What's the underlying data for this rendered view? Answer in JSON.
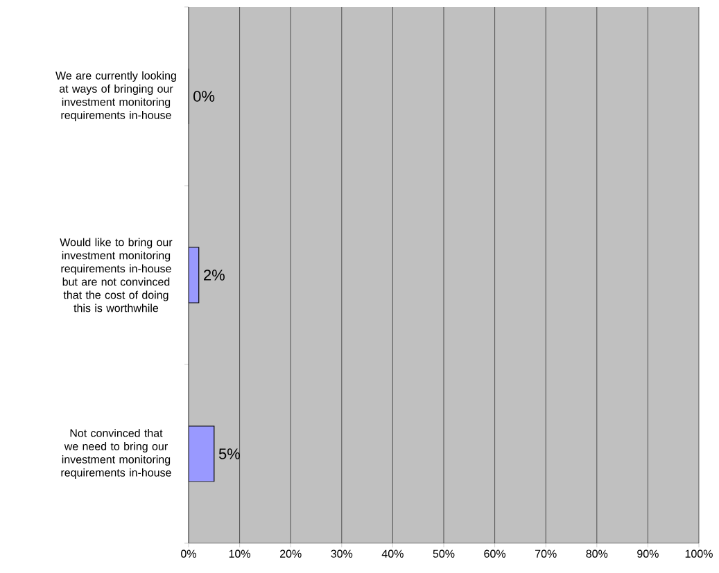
{
  "chart_data": {
    "type": "bar",
    "orientation": "horizontal",
    "categories": [
      "We are currently looking at ways of bringing our investment monitoring requirements in-house",
      "Would like to bring our investment monitoring requirements in-house but are not convinced that the cost of doing this is worthwhile",
      "Not convinced that we need to bring our investment monitoring requirements in-house"
    ],
    "values": [
      0,
      2,
      5
    ],
    "value_labels": [
      "0%",
      "2%",
      "5%"
    ],
    "color": "#9999ff",
    "xlim": [
      0,
      100
    ],
    "xticks": [
      {
        "value": 0,
        "label": "0%"
      },
      {
        "value": 10,
        "label": "10%"
      },
      {
        "value": 20,
        "label": "20%"
      },
      {
        "value": 30,
        "label": "30%"
      },
      {
        "value": 40,
        "label": "40%"
      },
      {
        "value": 50,
        "label": "50%"
      },
      {
        "value": 60,
        "label": "60%"
      },
      {
        "value": 70,
        "label": "70%"
      },
      {
        "value": 80,
        "label": "80%"
      },
      {
        "value": 90,
        "label": "90%"
      },
      {
        "value": 100,
        "label": "100%"
      }
    ],
    "grid": "x"
  }
}
